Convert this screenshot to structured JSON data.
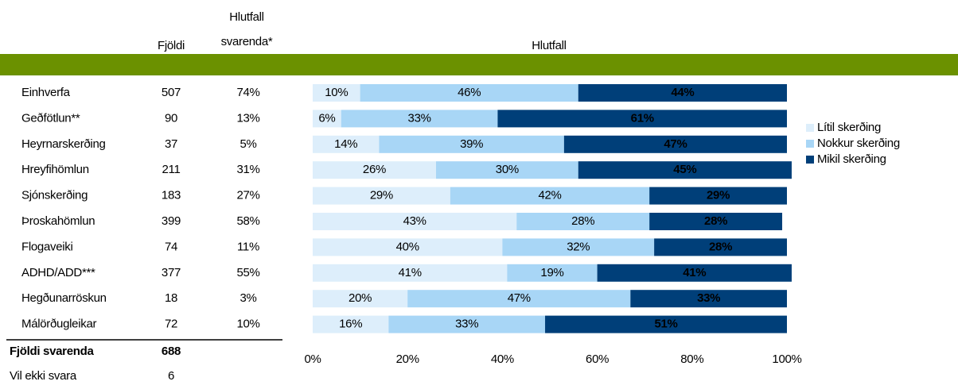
{
  "table": {
    "headers": [
      "Fjöldi",
      "Hlutfall svarenda*"
    ],
    "rows": [
      [
        "Einhverfa",
        "507",
        "74%"
      ],
      [
        "Geðfötlun**",
        "90",
        "13%"
      ],
      [
        "Heyrnarskerðing",
        "37",
        "5%"
      ],
      [
        "Hreyfihömlun",
        "211",
        "31%"
      ],
      [
        "Sjónskerðing",
        "183",
        "27%"
      ],
      [
        "Þroskahömlun",
        "399",
        "58%"
      ],
      [
        "Flogaveiki",
        "74",
        "11%"
      ],
      [
        "ADHD/ADD***",
        "377",
        "55%"
      ],
      [
        "Hegðunarröskun",
        "18",
        "3%"
      ],
      [
        "Málörðugleikar",
        "72",
        "10%"
      ]
    ],
    "footer": [
      [
        "Fjöldi svarenda",
        "688"
      ],
      [
        "Vil ekki svara",
        "6"
      ]
    ]
  },
  "chart_data": {
    "type": "stacked-barh",
    "title": "Hlutfall",
    "xlim": [
      0,
      100
    ],
    "xticks": [
      {
        "value": 0,
        "label": "0%"
      },
      {
        "value": 20,
        "label": "20%"
      },
      {
        "value": 40,
        "label": "40%"
      },
      {
        "value": 60,
        "label": "60%"
      },
      {
        "value": 80,
        "label": "80%"
      },
      {
        "value": 100,
        "label": "100%"
      }
    ],
    "legend": "right",
    "series": [
      {
        "name": "Lítil skerðing",
        "color": "#ddeefb",
        "values": [
          10,
          6,
          14,
          26,
          29,
          43,
          40,
          41,
          20,
          16
        ],
        "value_labels": [
          "10%",
          "6%",
          "14%",
          "26%",
          "29%",
          "43%",
          "40%",
          "41%",
          "20%",
          "16%"
        ]
      },
      {
        "name": "Nokkur skerðing",
        "color": "#a8d6f6",
        "values": [
          46,
          33,
          39,
          30,
          42,
          28,
          32,
          19,
          47,
          33
        ],
        "value_labels": [
          "46%",
          "33%",
          "39%",
          "30%",
          "42%",
          "28%",
          "32%",
          "19%",
          "47%",
          "33%"
        ]
      },
      {
        "name": "Mikil skerðing",
        "color": "#003f79",
        "values": [
          44,
          61,
          47,
          45,
          29,
          28,
          28,
          41,
          33,
          51
        ],
        "value_labels": [
          "44%",
          "61%",
          "47%",
          "45%",
          "29%",
          "28%",
          "28%",
          "41%",
          "33%",
          "51%"
        ]
      }
    ]
  }
}
